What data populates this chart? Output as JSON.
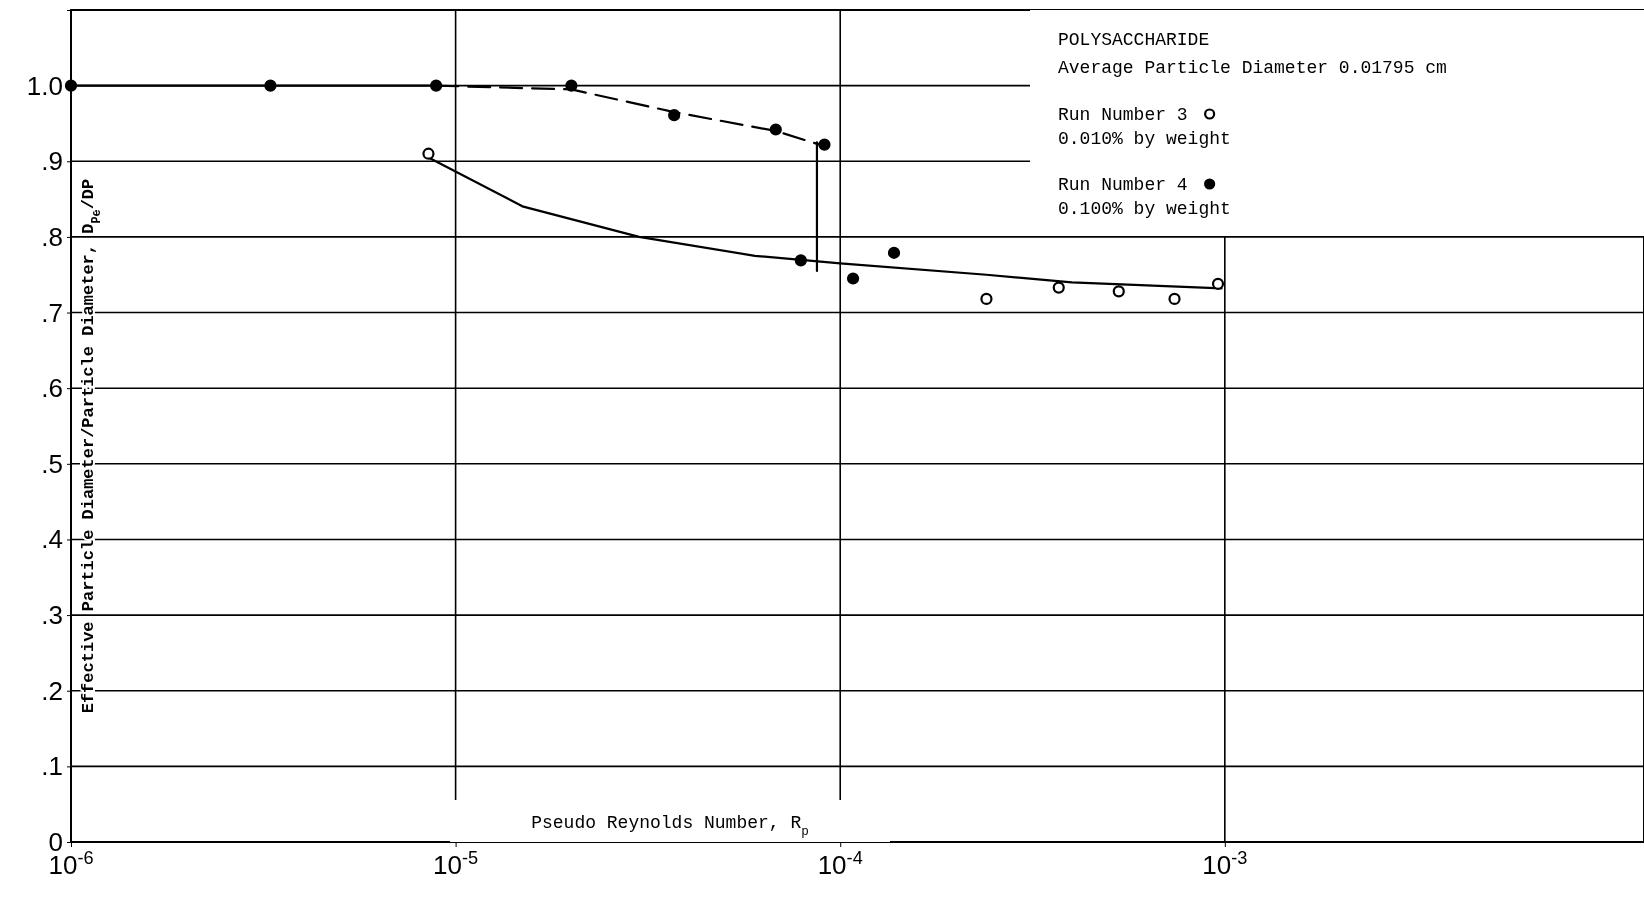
{
  "chart_data": {
    "type": "scatter",
    "title": "POLYSACCHARIDE",
    "subtitle": "Average Particle Diameter 0.01795 cm",
    "xlabel": "Pseudo Reynolds Number, R$_{p}$",
    "ylabel": "Effective Particle Diameter/Particle Diameter, D$_{Pe}$/DP",
    "log": "x",
    "xlim": [
      1e-06,
      0.0123
    ],
    "ylim": [
      0,
      1.1
    ],
    "xticks": [
      {
        "value": 1e-06,
        "label": "10$^{-6}$"
      },
      {
        "value": 1e-05,
        "label": "10$^{-5}$"
      },
      {
        "value": 0.0001,
        "label": "10$^{-4}$"
      },
      {
        "value": 0.001,
        "label": "10$^{-3}$"
      }
    ],
    "yticks": [
      {
        "value": 0,
        "label": "0"
      },
      {
        "value": 0.1,
        "label": ".1"
      },
      {
        "value": 0.2,
        "label": ".2"
      },
      {
        "value": 0.3,
        "label": ".3"
      },
      {
        "value": 0.4,
        "label": ".4"
      },
      {
        "value": 0.5,
        "label": ".5"
      },
      {
        "value": 0.6,
        "label": ".6"
      },
      {
        "value": 0.7,
        "label": ".7"
      },
      {
        "value": 0.8,
        "label": ".8"
      },
      {
        "value": 0.9,
        "label": ".9"
      },
      {
        "value": 1.0,
        "label": "1.0"
      }
    ],
    "grid": true,
    "legend": "top right",
    "annotations": [
      "0.010% by weight",
      "0.100% by weight"
    ],
    "series": [
      {
        "name": "Run Number 3",
        "marker": "circle",
        "color": "#ffffff",
        "x": [
          8.5e-06,
          0.00024,
          0.00037,
          0.00053,
          0.00074,
          0.00096
        ],
        "values": [
          0.91,
          0.718,
          0.733,
          0.728,
          0.718,
          0.738
        ]
      },
      {
        "name": "Run Number 4",
        "marker": "circle",
        "color": "#000000",
        "x": [
          1e-06,
          3.3e-06,
          8.9e-06,
          2e-05,
          3.7e-05,
          6.8e-05,
          9.1e-05,
          7.9e-05,
          0.000108,
          0.000138
        ],
        "values": [
          1.0,
          1.0,
          1.0,
          1.0,
          0.961,
          0.942,
          0.922,
          0.769,
          0.745,
          0.779
        ]
      },
      {
        "type": "line",
        "color": "#000000",
        "line_style": "solid",
        "x": [
          1e-06,
          3.3e-06,
          8.9e-06
        ],
        "values": [
          1.0,
          1.0,
          1.0
        ]
      },
      {
        "type": "line",
        "color": "#000000",
        "line_style": "dashed",
        "x": [
          8.9e-06,
          2e-05,
          3.7e-05,
          6.8e-05,
          9.1e-05
        ],
        "values": [
          1.0,
          0.995,
          0.965,
          0.94,
          0.92
        ]
      },
      {
        "type": "line",
        "color": "#000000",
        "line_style": "solid",
        "x": [
          8.7e-05,
          8.7e-05
        ],
        "values": [
          0.925,
          0.755
        ]
      },
      {
        "type": "line",
        "color": "#000000",
        "line_style": "solid",
        "x": [
          8.5e-06,
          1.5e-05,
          3e-05,
          6e-05,
          0.0001,
          0.00024,
          0.0004,
          0.00098
        ],
        "values": [
          0.905,
          0.84,
          0.8,
          0.775,
          0.765,
          0.75,
          0.74,
          0.732
        ]
      }
    ]
  }
}
